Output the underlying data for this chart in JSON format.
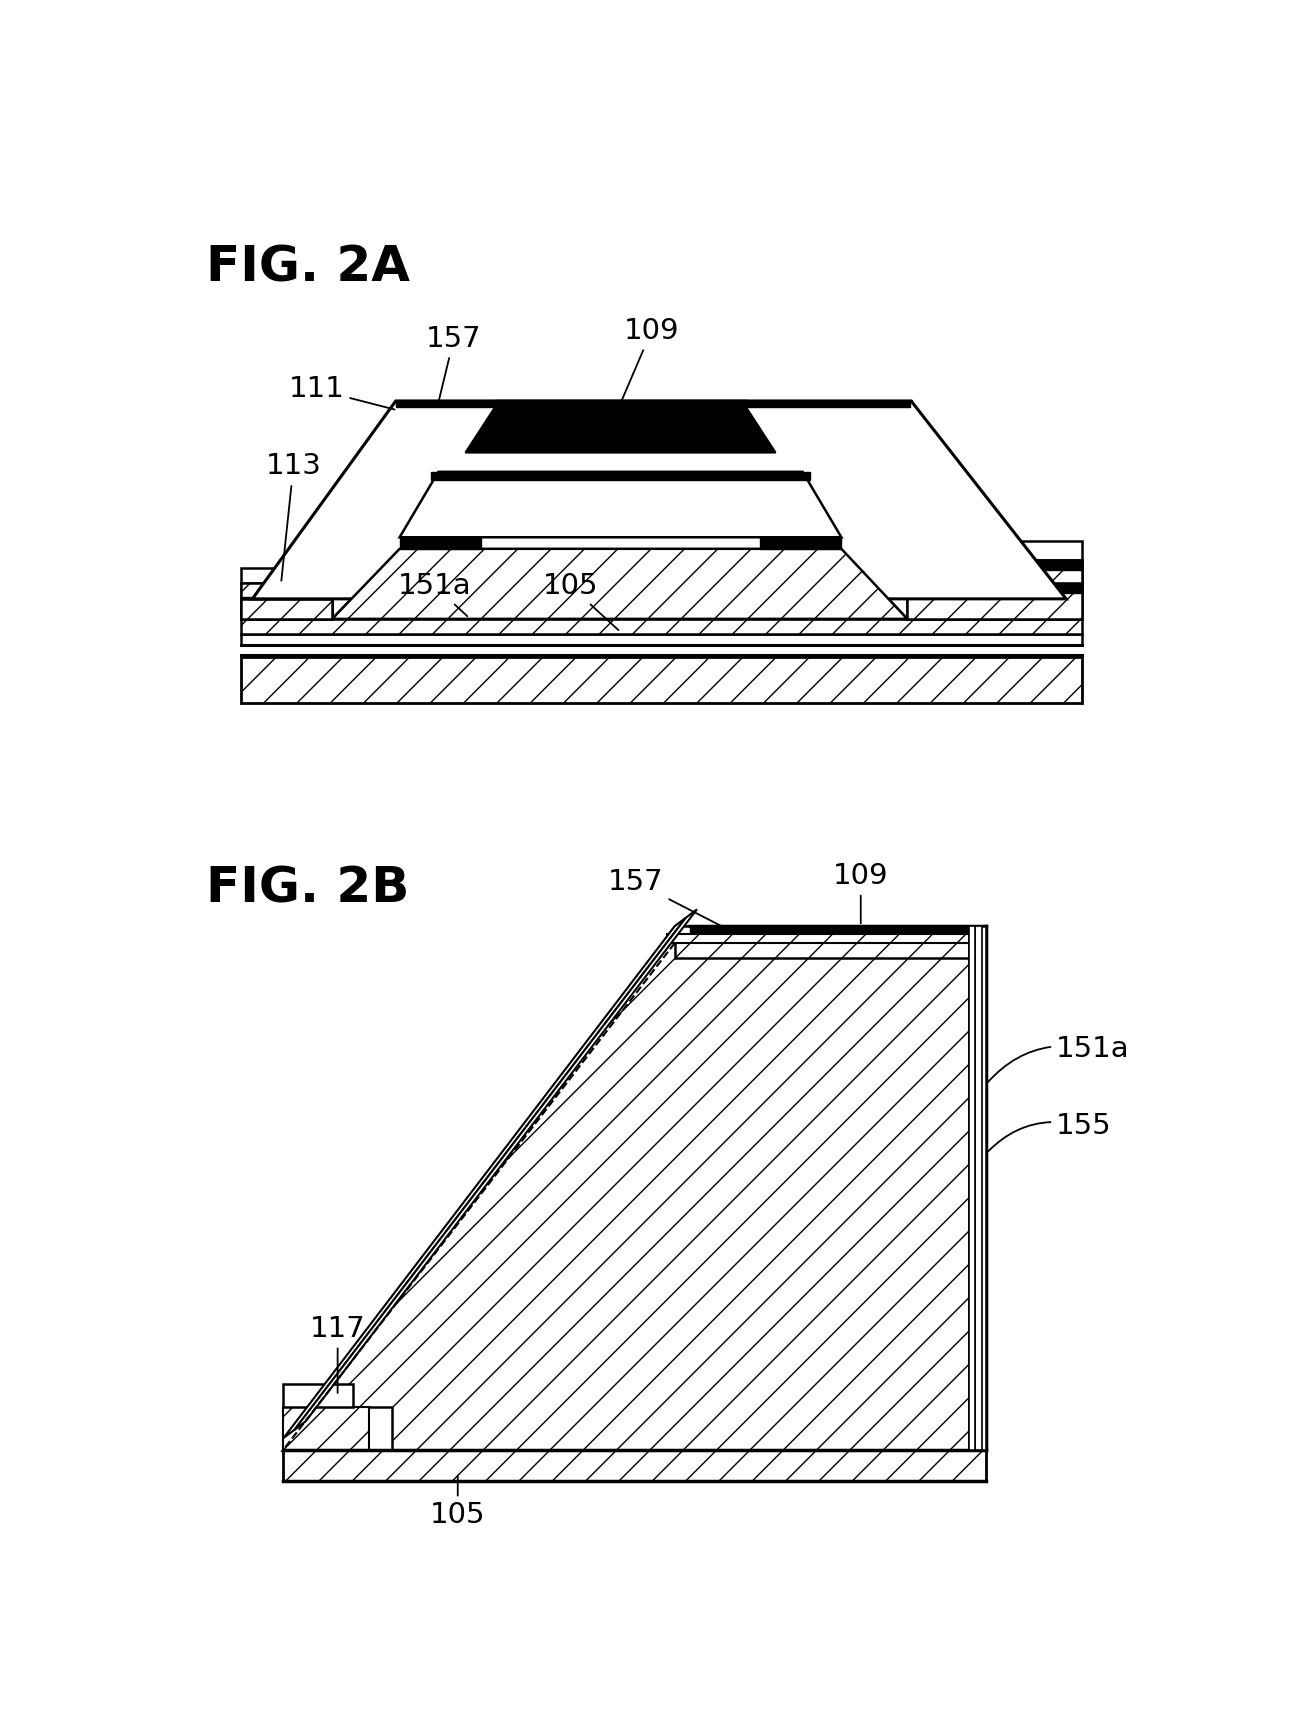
{
  "fig_title_a": "FIG. 2A",
  "fig_title_b": "FIG. 2B",
  "bg": "#ffffff"
}
